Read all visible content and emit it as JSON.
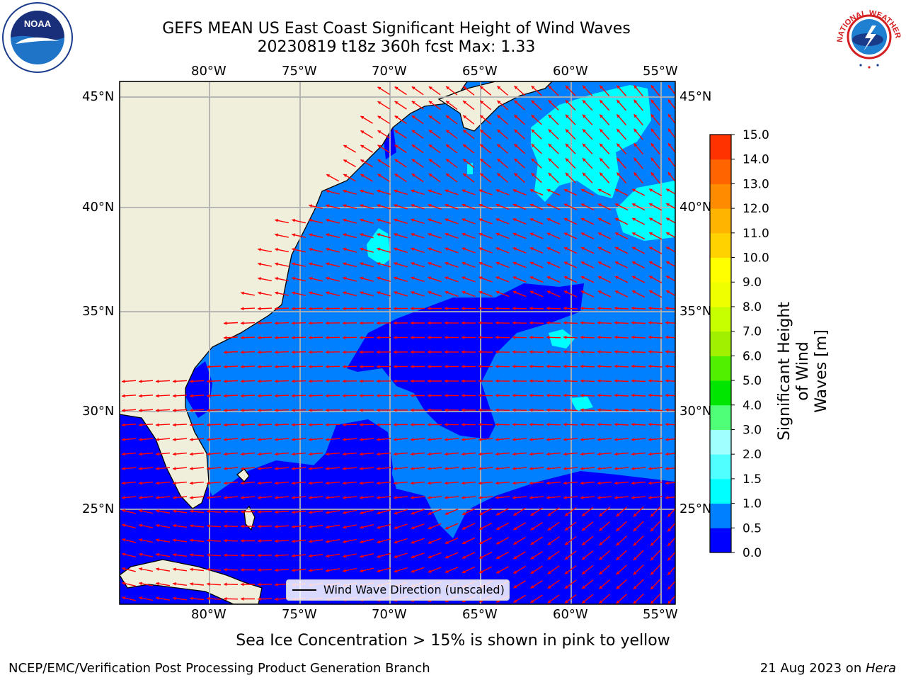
{
  "title": {
    "line1": "GEFS MEAN US East Coast Significant Height of Wind Waves",
    "line2": "20230819 t18z 360h fcst   Max: 1.33"
  },
  "axes": {
    "x_ticks": [
      "80°W",
      "75°W",
      "70°W",
      "65°W",
      "60°W",
      "55°W"
    ],
    "y_ticks": [
      "45°N",
      "40°N",
      "35°N",
      "30°N",
      "25°N"
    ]
  },
  "legend": {
    "label": "Wind Wave Direction (unscaled)"
  },
  "colorbar": {
    "label_line1": "Significant Height of Wind",
    "label_line2": "Waves [m]",
    "ticks": [
      "0.0",
      "0.5",
      "1.0",
      "1.5",
      "2.0",
      "3.0",
      "4.0",
      "5.0",
      "6.0",
      "7.0",
      "8.0",
      "9.0",
      "10.0",
      "11.0",
      "12.0",
      "13.0",
      "14.0",
      "15.0"
    ],
    "colors": [
      "#0000ff",
      "#0080ff",
      "#00ffff",
      "#50ffff",
      "#a0ffff",
      "#50ff78",
      "#00e600",
      "#50f000",
      "#a0f000",
      "#c8ff00",
      "#f0ff00",
      "#ffff00",
      "#ffd200",
      "#ffb400",
      "#ff8c00",
      "#ff6400",
      "#ff3200",
      "#ff0000"
    ]
  },
  "caption": "Sea Ice Concentration > 15% is shown in pink to yellow",
  "footer": {
    "left": "NCEP/EMC/Verification Post Processing Product Generation Branch",
    "right_date": "21 Aug 2023 on ",
    "right_host": "Hera"
  },
  "logos": {
    "left": "NOAA",
    "right": "NATIONAL WEATHER SERVICE"
  },
  "colors": {
    "land": "#efefdc",
    "ocean_low": "#0000ff",
    "ocean_mid": "#0080ff",
    "ocean_high": "#00ffff",
    "arrows": "#ff0000",
    "grid": "#b0b0b0"
  }
}
